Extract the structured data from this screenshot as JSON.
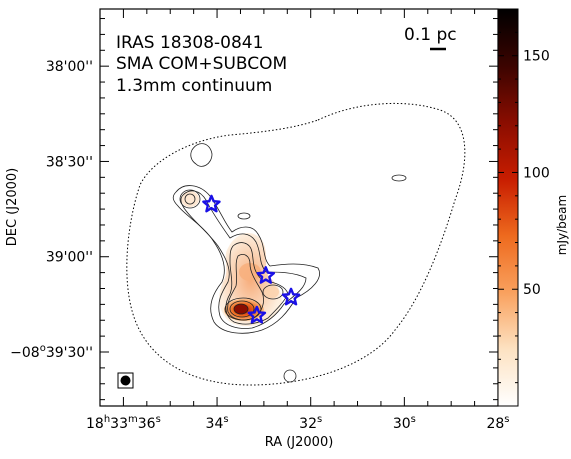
{
  "chart_data": {
    "type": "heatmap",
    "annotation_lines": [
      "IRAS 18308-0841",
      "SMA COM+SUBCOM",
      "1.3mm continuum"
    ],
    "scale_bar_label": "0.1 pc",
    "x_axis": {
      "label": "RA (J2000)",
      "range_sec": [
        36.5,
        28.0
      ],
      "ticks": [
        {
          "value": 36,
          "h": "18",
          "m": "33",
          "s": "36",
          "full": true
        },
        {
          "value": 34,
          "s": "34"
        },
        {
          "value": 32,
          "s": "32"
        },
        {
          "value": 30,
          "s": "30"
        },
        {
          "value": 28,
          "s": "28"
        }
      ]
    },
    "y_axis": {
      "label": "DEC (J2000)",
      "range_arcsec_below_minus8d38m": [
        -18,
        107
      ],
      "ticks": [
        {
          "value": 0,
          "text": "38'00''"
        },
        {
          "value": 30,
          "text": "38'30''"
        },
        {
          "value": 60,
          "text": "39'00''"
        },
        {
          "value": 90,
          "text": "−08°39'30''",
          "full": true
        }
      ]
    },
    "colorbar": {
      "label": "mJy/beam",
      "range": [
        0,
        170
      ],
      "ticks": [
        50,
        100,
        150
      ],
      "colors": [
        "#ffffff",
        "#fde2c2",
        "#f9a15e",
        "#ee6a1e",
        "#c81d00",
        "#8a0d00",
        "#3b0400",
        "#000000"
      ]
    },
    "sources": [
      {
        "ra_s": 34.12,
        "dec_arcsec": 43.5
      },
      {
        "ra_s": 32.96,
        "dec_arcsec": 66.0
      },
      {
        "ra_s": 32.42,
        "dec_arcsec": 72.8
      },
      {
        "ra_s": 33.15,
        "dec_arcsec": 78.5
      }
    ],
    "marker_color": "#1a10e6"
  }
}
